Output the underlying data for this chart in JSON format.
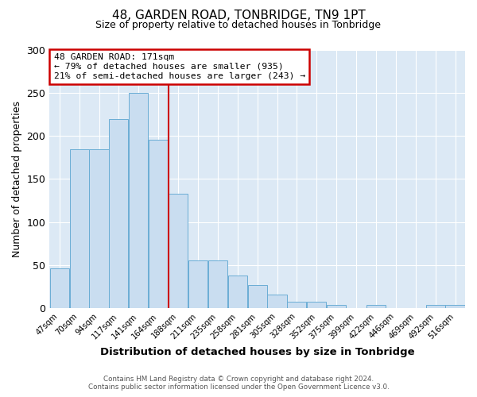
{
  "title": "48, GARDEN ROAD, TONBRIDGE, TN9 1PT",
  "subtitle": "Size of property relative to detached houses in Tonbridge",
  "xlabel": "Distribution of detached houses by size in Tonbridge",
  "ylabel": "Number of detached properties",
  "bar_labels": [
    "47sqm",
    "70sqm",
    "94sqm",
    "117sqm",
    "141sqm",
    "164sqm",
    "188sqm",
    "211sqm",
    "235sqm",
    "258sqm",
    "281sqm",
    "305sqm",
    "328sqm",
    "352sqm",
    "375sqm",
    "399sqm",
    "422sqm",
    "446sqm",
    "469sqm",
    "492sqm",
    "516sqm"
  ],
  "bar_heights": [
    46,
    184,
    184,
    219,
    250,
    195,
    133,
    55,
    55,
    38,
    27,
    16,
    8,
    8,
    4,
    0,
    4,
    0,
    0,
    4,
    4
  ],
  "bar_color": "#c9ddf0",
  "bar_edgecolor": "#6aadd5",
  "vline_x": 5.5,
  "vline_color": "#cc0000",
  "annotation_text": "48 GARDEN ROAD: 171sqm\n← 79% of detached houses are smaller (935)\n21% of semi-detached houses are larger (243) →",
  "annotation_box_facecolor": "#ffffff",
  "annotation_box_edgecolor": "#cc0000",
  "ylim": [
    0,
    300
  ],
  "yticks": [
    0,
    50,
    100,
    150,
    200,
    250,
    300
  ],
  "footer_line1": "Contains HM Land Registry data © Crown copyright and database right 2024.",
  "footer_line2": "Contains public sector information licensed under the Open Government Licence v3.0.",
  "fig_bg_color": "#ffffff",
  "plot_bg_color": "#dce9f5"
}
